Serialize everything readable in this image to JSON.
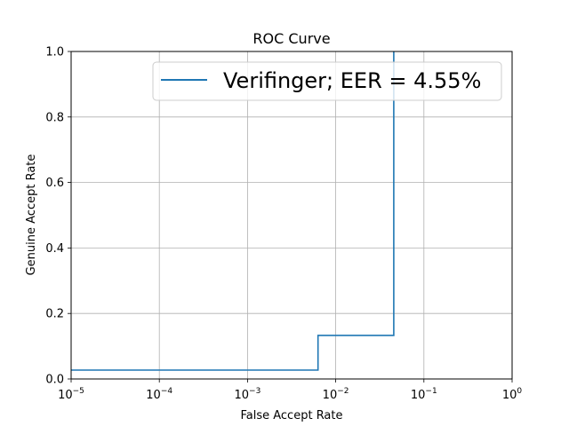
{
  "chart_data": {
    "type": "line",
    "title": "ROC Curve",
    "xlabel": "False Accept Rate",
    "ylabel": "Genuine Accept Rate",
    "xscale": "log",
    "xlim": [
      1e-05,
      1
    ],
    "ylim": [
      0,
      1
    ],
    "grid": true,
    "legend_position": "top-right",
    "x_ticks": [
      1e-05,
      0.0001,
      0.001,
      0.01,
      0.1,
      1
    ],
    "x_tick_labels": [
      {
        "base": "10",
        "exp": "−5"
      },
      {
        "base": "10",
        "exp": "−4"
      },
      {
        "base": "10",
        "exp": "−3"
      },
      {
        "base": "10",
        "exp": "−2"
      },
      {
        "base": "10",
        "exp": "−1"
      },
      {
        "base": "10",
        "exp": "0"
      }
    ],
    "y_ticks": [
      0,
      0.2,
      0.4,
      0.6,
      0.8,
      1.0
    ],
    "y_tick_labels": [
      "0.0",
      "0.2",
      "0.4",
      "0.6",
      "0.8",
      "1.0"
    ],
    "series": [
      {
        "name": "Verifinger; EER = 4.55%",
        "color": "#1f77b4",
        "x": [
          1e-05,
          0.0063,
          0.0063,
          0.0455,
          0.0455
        ],
        "y": [
          0.027,
          0.027,
          0.133,
          0.133,
          1.0
        ]
      }
    ]
  }
}
